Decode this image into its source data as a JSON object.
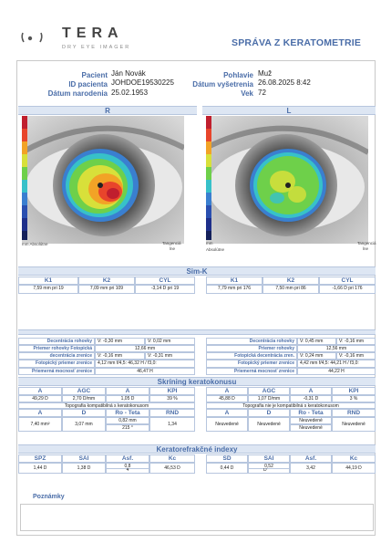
{
  "header": {
    "logo_text": "TERA",
    "logo_sub": "DRY EYE IMAGER",
    "title": "SPRÁVA Z KERATOMETRIE"
  },
  "patient": {
    "name_label": "Pacient",
    "name": "Ján Novák",
    "id_label": "ID pacienta",
    "id": "JOHDOE19530225",
    "dob_label": "Dátum narodenia",
    "dob": "25.02.1953",
    "sex_label": "Pohlavie",
    "sex": "Muž",
    "exam_label": "Dátum vyšetrenia",
    "exam": "26.08.2025 8:42",
    "age_label": "Vek",
    "age": "72"
  },
  "eyes": {
    "right_label": "R",
    "left_label": "L",
    "scale_left": "mm Absolútne",
    "scale_right_a": "Tangenciá",
    "scale_right_b": "lne",
    "scale_left2_a": "mm",
    "scale_left2_b": "Absolútne",
    "scale_right2_a": "Tangenciá",
    "scale_right2_b": "lne"
  },
  "simk": {
    "title": "Sim-K",
    "headers": [
      "K1",
      "K2",
      "CYL"
    ],
    "right": [
      "7,59 mm pri 19",
      "7,09 mm pri 109",
      "-3,14 D pri 19"
    ],
    "left": [
      "7,79 mm pri 176",
      "7,50 mm pri 86",
      "-1,66 D pri 176"
    ]
  },
  "params": {
    "right": {
      "decentr_label": "Decentrácia rohovky",
      "decentr_v": "V: -0,30 mm",
      "decentr_v2": "V: 0,02 mm",
      "diam_label": "Priemer rohovky Fotopická",
      "diam": "12,66 mm",
      "pup_dec_label": "decentrácia zrenice",
      "pup_dec_v": "V: -0,16 mm",
      "pup_dec_v2": "V: -0,31 mm",
      "pup_diam_label": "Fotopický priemer zrenice",
      "pup_diam": "4,12 mm f/4,5: 46,32 H / f3,0:",
      "mean_label": "Priemerná mocnosť zrenice",
      "mean": "46,47 H"
    },
    "left": {
      "decentr_label": "Decentrácia rohovky",
      "decentr_v": "V: 0,45 mm",
      "decentr_v2": "V: -0,16 mm",
      "diam_label": "Priemer rohovky",
      "diam": "12,56 mm",
      "pup_dec_label": "Fotopická decentrácia zren.",
      "pup_dec_v": "V: 0,24 mm",
      "pup_dec_v2": "V: -0,16 mm",
      "pup_diam_label": "Fotopický priemer zrenice",
      "pup_diam": "4,42 mm f/4,5: 44,21 H / f3,0:",
      "mean_label": "Priemerná mocnosť zrenice",
      "mean": "44,22 H"
    }
  },
  "screening": {
    "title": "Skríning keratokonusu",
    "h1": [
      "A",
      "AGC",
      "A",
      "KPI"
    ],
    "right_row1": [
      "49,29 D",
      "2,70 D/mm",
      "1,05 D",
      "39 %"
    ],
    "left_row1": [
      "45,88 D",
      "1,07 D/mm",
      "-0,31 D",
      "3 %"
    ],
    "right_topo": "Topografia kompatibilná s keratokonusom",
    "left_topo": "Topografia nie je kompatibilná s keratokonusom",
    "h2": [
      "A",
      "D",
      "Ro - Teta",
      "RND"
    ],
    "right_row2": [
      "7,40 mm²",
      "3,07 mm",
      "0,82 mm",
      "215 °",
      "1,34"
    ],
    "left_row2": [
      "Neuvedené",
      "Neuvedené",
      "Neuvedené",
      "Neuvedené",
      "Neuvedené"
    ]
  },
  "refractive": {
    "title": "Keratorefrakčné indexy",
    "headers": [
      "SPZ",
      "SAI",
      "Asf.",
      "Kc"
    ],
    "left_headers": [
      "SD",
      "SAI",
      "Asf.",
      "Kc"
    ],
    "right": [
      "1,44 D",
      "1,38 D",
      "0,8",
      "4",
      "46,53 D"
    ],
    "left": [
      "0,44 D",
      "0,52",
      "D",
      "3,42",
      "44,19 D"
    ]
  },
  "notes": {
    "title": "Poznámky"
  },
  "colors": {
    "accent": "#4a6da8",
    "bar": "#dde6f3",
    "border": "#b7c6de"
  }
}
